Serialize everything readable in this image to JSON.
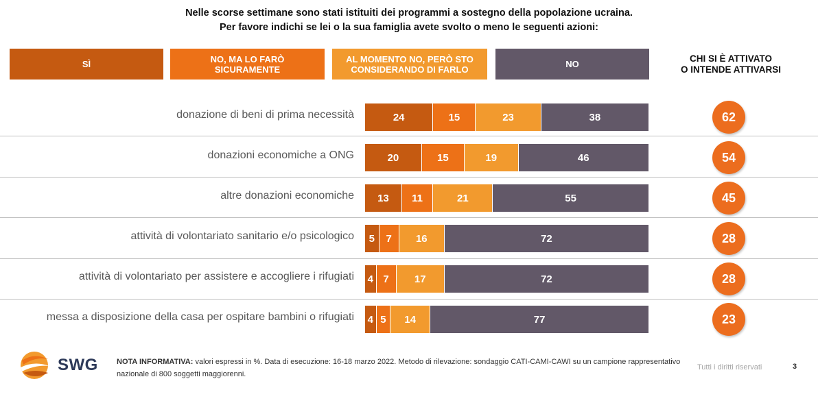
{
  "title_line1": "Nelle scorse settimane sono stati istituiti dei programmi a sostegno della popolazione ucraina.",
  "title_line2": "Per favore indichi se lei o la sua famiglia avete svolto o meno le seguenti azioni:",
  "legend_right": "CHI SI È ATTIVATO\nO INTENDE ATTIVARSI",
  "chart_data": {
    "type": "bar",
    "orientation": "horizontal",
    "stacked": true,
    "unit": "%",
    "categories": [
      "donazione di beni di prima necessità",
      "donazioni economiche a ONG",
      "altre donazioni economiche",
      "attività di volontariato sanitario e/o psicologico",
      "attività di volontariato per assistere e accogliere i rifugiati",
      "messa a disposizione della casa per ospitare bambini o rifugiati"
    ],
    "series": [
      {
        "name": "SÌ",
        "color": "#c55a11",
        "values": [
          24,
          20,
          13,
          5,
          4,
          4
        ]
      },
      {
        "name": "NO, MA LO FARÒ SICURAMENTE",
        "color": "#ed7117",
        "values": [
          15,
          15,
          11,
          7,
          7,
          5
        ]
      },
      {
        "name": "AL MOMENTO NO, PERÒ STO CONSIDERANDO DI FARLO",
        "color": "#f29a2e",
        "values": [
          23,
          19,
          21,
          16,
          17,
          14
        ]
      },
      {
        "name": "NO",
        "color": "#625868",
        "values": [
          38,
          46,
          55,
          72,
          72,
          77
        ]
      }
    ],
    "totals": {
      "name": "CHI SI È ATTIVATO O INTENDE ATTIVARSI",
      "values": [
        62,
        54,
        45,
        28,
        28,
        23
      ]
    },
    "xlim": [
      0,
      100
    ]
  },
  "footer": {
    "logo_text": "SWG",
    "note_label": "NOTA INFORMATIVA:",
    "note_text": " valori espressi in %. Data di esecuzione: 16-18 marzo 2022. Metodo di rilevazione: sondaggio CATI-CAMI-CAWI su un campione rappresentativo nazionale di 800 soggetti maggiorenni.",
    "rights": "Tutti i diritti riservati",
    "page": "3"
  }
}
